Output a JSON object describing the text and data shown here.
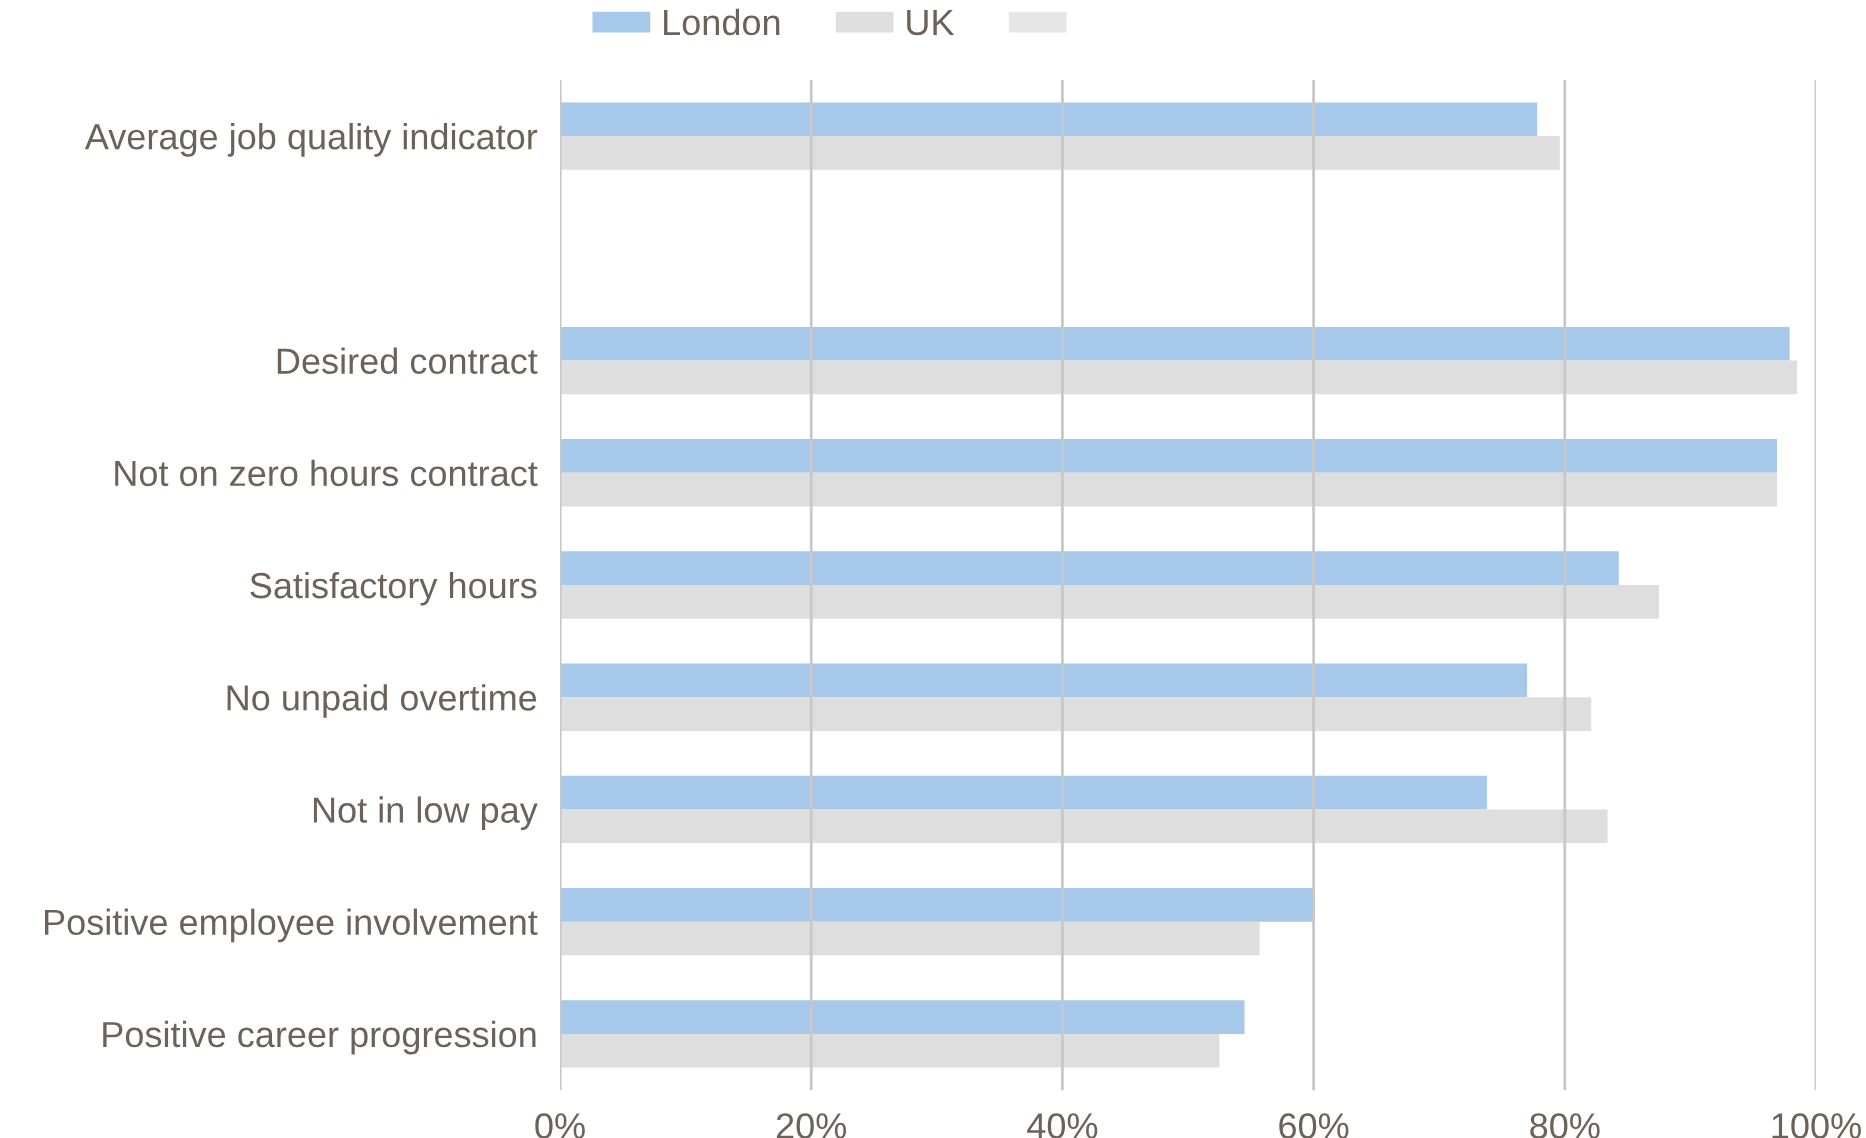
{
  "chart_data": {
    "type": "bar",
    "orientation": "horizontal",
    "categories": [
      "Average job quality indicator",
      null,
      "Desired contract",
      "Not on zero hours contract",
      "Satisfactory hours",
      "No unpaid overtime",
      "Not in low pay",
      "Positive employee involvement",
      "Positive career progression"
    ],
    "series": [
      {
        "name": "London",
        "color": "#a6c8ea",
        "values": [
          77.8,
          null,
          97.9,
          96.9,
          84.3,
          77.0,
          73.8,
          60.0,
          54.5
        ]
      },
      {
        "name": "UK",
        "color": "#dedede",
        "values": [
          79.6,
          null,
          98.5,
          96.9,
          87.5,
          82.1,
          83.4,
          55.7,
          52.5
        ]
      },
      {
        "color": "#e6e6e6",
        "values": [
          null,
          null,
          null,
          null,
          null,
          null,
          null,
          null,
          null
        ]
      }
    ],
    "xlim": [
      0,
      100
    ],
    "xticks": [
      {
        "value": 0,
        "label": "0%"
      },
      {
        "value": 20,
        "label": "20%"
      },
      {
        "value": 40,
        "label": "40%"
      },
      {
        "value": 60,
        "label": "60%"
      },
      {
        "value": 80,
        "label": "80%"
      },
      {
        "value": 100,
        "label": "100%"
      }
    ],
    "grid": "x",
    "legend": "top"
  }
}
